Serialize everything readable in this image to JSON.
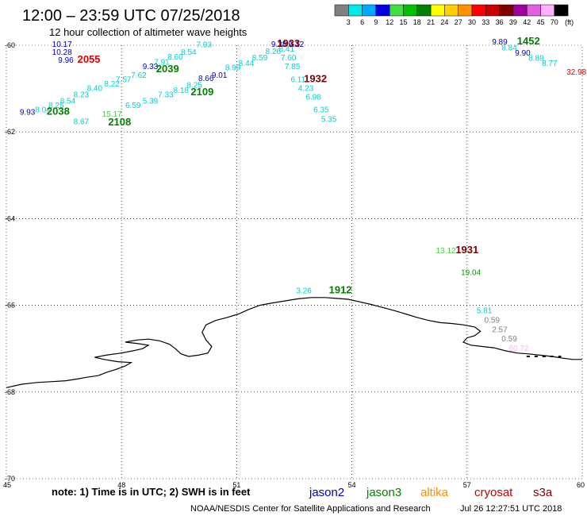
{
  "header": {
    "title": "12:00 – 23:59 UTC 07/25/2018",
    "subtitle": "12 hour collection of altimeter wave heights"
  },
  "colorbar": {
    "unit": "(ft)",
    "items": [
      {
        "label": "3",
        "color": "#808080"
      },
      {
        "label": "6",
        "color": "#00e8e8"
      },
      {
        "label": "9",
        "color": "#00a8ff"
      },
      {
        "label": "12",
        "color": "#0000e0"
      },
      {
        "label": "15",
        "color": "#40e040"
      },
      {
        "label": "18",
        "color": "#00c000"
      },
      {
        "label": "21",
        "color": "#008000"
      },
      {
        "label": "24",
        "color": "#ffff00"
      },
      {
        "label": "27",
        "color": "#ffd000"
      },
      {
        "label": "30",
        "color": "#ff9000"
      },
      {
        "label": "33",
        "color": "#ff0000"
      },
      {
        "label": "36",
        "color": "#c80000"
      },
      {
        "label": "39",
        "color": "#800000"
      },
      {
        "label": "42",
        "color": "#a000a0"
      },
      {
        "label": "45",
        "color": "#e060e0"
      },
      {
        "label": "70",
        "color": "#ffb0ff"
      },
      {
        "label": "",
        "color": "#000000"
      }
    ]
  },
  "axes": {
    "lat_labels": [
      "-60",
      "-62",
      "-64",
      "-66",
      "-68",
      "-70"
    ],
    "lon_labels": [
      "45",
      "48",
      "51",
      "54",
      "57",
      "60"
    ]
  },
  "footer": {
    "note": "note:  1) Time is in UTC;  2) SWH is in feet",
    "credit": "NOAA/NESDIS Center for Satellite Applications and Research",
    "timestamp": "Jul 26 12:27:51 UTC 2018"
  },
  "legend": [
    {
      "name": "jason2",
      "color": "#0000c8"
    },
    {
      "name": "jason3",
      "color": "#008000"
    },
    {
      "name": "altika",
      "color": "#ff9000"
    },
    {
      "name": "cryosat",
      "color": "#c80000"
    },
    {
      "name": "s3a",
      "color": "#800000"
    }
  ],
  "observations": [
    {
      "v": "10.17",
      "lon": 46.45,
      "lat": -60.04,
      "color": "#0000c8"
    },
    {
      "v": "10.28",
      "lon": 46.45,
      "lat": -60.22,
      "color": "#0000c8"
    },
    {
      "v": "9.96",
      "lon": 46.55,
      "lat": -60.4,
      "color": "#0000c8"
    },
    {
      "v": "9.93",
      "lon": 45.55,
      "lat": -61.6,
      "color": "#0000c8"
    },
    {
      "v": "8.04",
      "lon": 45.95,
      "lat": -61.55,
      "color": "#00d0d0"
    },
    {
      "v": "8.25",
      "lon": 46.3,
      "lat": -61.45,
      "color": "#00d0d0"
    },
    {
      "v": "8.54",
      "lon": 46.6,
      "lat": -61.35,
      "color": "#00d0d0"
    },
    {
      "v": "8.23",
      "lon": 46.95,
      "lat": -61.2,
      "color": "#00d0d0"
    },
    {
      "v": "8.40",
      "lon": 47.3,
      "lat": -61.05,
      "color": "#00d0d0"
    },
    {
      "v": "8.22",
      "lon": 47.75,
      "lat": -60.95,
      "color": "#00d0d0"
    },
    {
      "v": "7.57",
      "lon": 48.05,
      "lat": -60.85,
      "color": "#00d0d0"
    },
    {
      "v": "7.62",
      "lon": 48.45,
      "lat": -60.75,
      "color": "#00d0d0"
    },
    {
      "v": "9.33",
      "lon": 48.75,
      "lat": -60.55,
      "color": "#0000c8"
    },
    {
      "v": "7.91",
      "lon": 49.05,
      "lat": -60.45,
      "color": "#00d0d0"
    },
    {
      "v": "8.60",
      "lon": 49.4,
      "lat": -60.33,
      "color": "#00d0d0"
    },
    {
      "v": "8.54",
      "lon": 49.75,
      "lat": -60.22,
      "color": "#00d0d0"
    },
    {
      "v": "7.93",
      "lon": 50.15,
      "lat": -60.05,
      "color": "#00d0d0"
    },
    {
      "v": "6.59",
      "lon": 48.3,
      "lat": -61.45,
      "color": "#00d0d0"
    },
    {
      "v": "5.39",
      "lon": 48.75,
      "lat": -61.35,
      "color": "#00d0d0"
    },
    {
      "v": "7.33",
      "lon": 49.15,
      "lat": -61.2,
      "color": "#00d0d0"
    },
    {
      "v": "8.18",
      "lon": 49.55,
      "lat": -61.1,
      "color": "#00d0d0"
    },
    {
      "v": "8.25",
      "lon": 49.9,
      "lat": -60.98,
      "color": "#00d0d0"
    },
    {
      "v": "8.66",
      "lon": 50.2,
      "lat": -60.82,
      "color": "#0000c8"
    },
    {
      "v": "9.01",
      "lon": 50.55,
      "lat": -60.75,
      "color": "#0000c8"
    },
    {
      "v": "8.99",
      "lon": 50.9,
      "lat": -60.58,
      "color": "#00d0d0"
    },
    {
      "v": "8.44",
      "lon": 51.25,
      "lat": -60.48,
      "color": "#00d0d0"
    },
    {
      "v": "8.59",
      "lon": 51.6,
      "lat": -60.35,
      "color": "#00d0d0"
    },
    {
      "v": "8.26",
      "lon": 51.95,
      "lat": -60.2,
      "color": "#00d0d0"
    },
    {
      "v": "9.38",
      "lon": 52.1,
      "lat": -60.04,
      "color": "#0000c8"
    },
    {
      "v": "9.12",
      "lon": 52.55,
      "lat": -60.04,
      "color": "#0000c8"
    },
    {
      "v": "8.41",
      "lon": 52.3,
      "lat": -60.15,
      "color": "#00d0d0"
    },
    {
      "v": "7.60",
      "lon": 52.35,
      "lat": -60.35,
      "color": "#00d0d0"
    },
    {
      "v": "7.85",
      "lon": 52.45,
      "lat": -60.55,
      "color": "#00d0d0"
    },
    {
      "v": "6.11",
      "lon": 52.6,
      "lat": -60.85,
      "color": "#00d0d0"
    },
    {
      "v": "4.23",
      "lon": 52.8,
      "lat": -61.05,
      "color": "#00d0d0"
    },
    {
      "v": "6.98",
      "lon": 53.0,
      "lat": -61.25,
      "color": "#00d0d0"
    },
    {
      "v": "6.35",
      "lon": 53.2,
      "lat": -61.55,
      "color": "#00d0d0"
    },
    {
      "v": "5.35",
      "lon": 53.4,
      "lat": -61.77,
      "color": "#00d0d0"
    },
    {
      "v": "8.67",
      "lon": 46.95,
      "lat": -61.82,
      "color": "#00d0d0"
    },
    {
      "v": "15.17",
      "lon": 47.75,
      "lat": -61.65,
      "color": "#40d040"
    },
    {
      "v": "9.89",
      "lon": 57.85,
      "lat": -59.98,
      "color": "#0000c8"
    },
    {
      "v": "8.84",
      "lon": 58.1,
      "lat": -60.12,
      "color": "#00d0d0"
    },
    {
      "v": "9.90",
      "lon": 58.45,
      "lat": -60.24,
      "color": "#0000c8"
    },
    {
      "v": "8.89",
      "lon": 58.8,
      "lat": -60.36,
      "color": "#00d0d0"
    },
    {
      "v": "8.77",
      "lon": 59.15,
      "lat": -60.48,
      "color": "#00d0d0"
    },
    {
      "v": "32.98",
      "lon": 59.85,
      "lat": -60.68,
      "color": "#e00000"
    },
    {
      "v": "13.12",
      "lon": 56.45,
      "lat": -64.8,
      "color": "#40d040"
    },
    {
      "v": "19.04",
      "lon": 57.1,
      "lat": -65.3,
      "color": "#00a000"
    },
    {
      "v": "3.26",
      "lon": 52.75,
      "lat": -65.72,
      "color": "#00d0d0"
    },
    {
      "v": "5.81",
      "lon": 57.45,
      "lat": -66.18,
      "color": "#00d0d0"
    },
    {
      "v": "0.59",
      "lon": 57.65,
      "lat": -66.4,
      "color": "#808080"
    },
    {
      "v": "2.57",
      "lon": 57.85,
      "lat": -66.62,
      "color": "#808080"
    },
    {
      "v": "0.59",
      "lon": 58.1,
      "lat": -66.83,
      "color": "#808080"
    },
    {
      "v": "60.72",
      "lon": 58.35,
      "lat": -67.05,
      "color": "#ffb0ff"
    }
  ],
  "pass_times": [
    {
      "t": "2055",
      "lon": 47.15,
      "lat": -60.4,
      "color": "#e00000"
    },
    {
      "t": "2038",
      "lon": 46.35,
      "lat": -61.6,
      "color": "#008000"
    },
    {
      "t": "2039",
      "lon": 49.2,
      "lat": -60.62,
      "color": "#008000"
    },
    {
      "t": "2109",
      "lon": 50.1,
      "lat": -61.15,
      "color": "#008000"
    },
    {
      "t": "2108",
      "lon": 47.95,
      "lat": -61.85,
      "color": "#008000"
    },
    {
      "t": "1933",
      "lon": 52.35,
      "lat": -60.04,
      "color": "#800000"
    },
    {
      "t": "1932",
      "lon": 53.05,
      "lat": -60.85,
      "color": "#800000"
    },
    {
      "t": "1452",
      "lon": 58.6,
      "lat": -59.98,
      "color": "#008000"
    },
    {
      "t": "1931",
      "lon": 57.0,
      "lat": -64.8,
      "color": "#800000"
    },
    {
      "t": "1912",
      "lon": 53.7,
      "lat": -65.72,
      "color": "#008000"
    }
  ],
  "coastline": [
    [
      45.0,
      -67.9
    ],
    [
      45.4,
      -67.82
    ],
    [
      45.8,
      -67.78
    ],
    [
      46.2,
      -67.76
    ],
    [
      46.55,
      -67.74
    ],
    [
      46.85,
      -67.7
    ],
    [
      47.1,
      -67.66
    ],
    [
      47.4,
      -67.62
    ],
    [
      47.6,
      -67.55
    ],
    [
      47.85,
      -67.48
    ],
    [
      48.1,
      -67.4
    ],
    [
      48.25,
      -67.32
    ],
    [
      47.9,
      -67.3
    ],
    [
      47.55,
      -67.25
    ],
    [
      47.3,
      -67.2
    ],
    [
      47.6,
      -67.15
    ],
    [
      48.0,
      -67.1
    ],
    [
      48.3,
      -67.05
    ],
    [
      48.55,
      -67.0
    ],
    [
      48.7,
      -66.92
    ],
    [
      48.4,
      -66.88
    ],
    [
      48.1,
      -66.85
    ],
    [
      48.4,
      -66.8
    ],
    [
      48.7,
      -66.78
    ],
    [
      49.0,
      -66.82
    ],
    [
      49.25,
      -66.9
    ],
    [
      49.4,
      -67.0
    ],
    [
      49.55,
      -67.12
    ],
    [
      49.75,
      -67.18
    ],
    [
      50.0,
      -67.15
    ],
    [
      50.25,
      -67.1
    ],
    [
      50.35,
      -66.95
    ],
    [
      50.2,
      -66.8
    ],
    [
      50.1,
      -66.62
    ],
    [
      50.2,
      -66.45
    ],
    [
      50.45,
      -66.35
    ],
    [
      50.75,
      -66.28
    ],
    [
      51.05,
      -66.2
    ],
    [
      51.3,
      -66.1
    ],
    [
      51.6,
      -66.0
    ],
    [
      51.9,
      -65.95
    ],
    [
      52.25,
      -65.9
    ],
    [
      52.6,
      -65.85
    ],
    [
      52.95,
      -65.82
    ],
    [
      53.3,
      -65.82
    ],
    [
      53.6,
      -65.84
    ],
    [
      53.9,
      -65.86
    ],
    [
      54.2,
      -65.92
    ],
    [
      54.5,
      -65.98
    ],
    [
      54.8,
      -66.05
    ],
    [
      55.1,
      -66.12
    ],
    [
      55.4,
      -66.2
    ],
    [
      55.7,
      -66.28
    ],
    [
      56.0,
      -66.35
    ],
    [
      56.3,
      -66.4
    ],
    [
      56.6,
      -66.42
    ],
    [
      56.9,
      -66.45
    ],
    [
      57.2,
      -66.5
    ],
    [
      57.35,
      -66.6
    ],
    [
      57.2,
      -66.7
    ],
    [
      57.0,
      -66.75
    ],
    [
      56.9,
      -66.85
    ],
    [
      57.1,
      -66.92
    ],
    [
      57.4,
      -66.95
    ],
    [
      57.7,
      -66.98
    ],
    [
      58.0,
      -67.05
    ],
    [
      58.3,
      -67.1
    ],
    [
      58.6,
      -67.12
    ],
    [
      58.9,
      -67.15
    ],
    [
      59.2,
      -67.18
    ],
    [
      59.5,
      -67.22
    ],
    [
      59.75,
      -67.25
    ],
    [
      60.0,
      -67.25
    ]
  ],
  "dash_segment": [
    [
      58.55,
      -67.18
    ],
    [
      59.45,
      -67.18
    ]
  ]
}
